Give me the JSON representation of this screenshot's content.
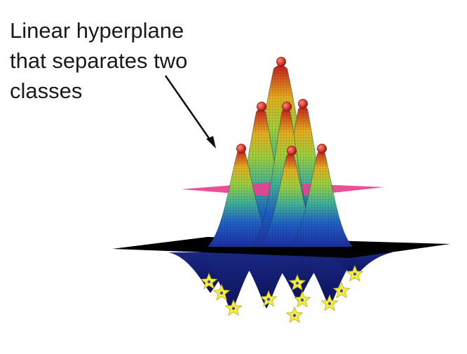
{
  "annotation": {
    "text": "Linear hyperplane\nthat separates two\nclasses"
  },
  "colors": {
    "background": "#ffffff",
    "text": "#1a1a1a",
    "hyperplane": "#e8418f",
    "base_plane": "#000000",
    "positive_marker": "#dc3b2e",
    "negative_marker": "#f6ee3a",
    "surface_high": "#cc1d1d",
    "surface_mid": "#3fb59a",
    "surface_low": "#1d2fa8"
  },
  "icons": {
    "positive_class": "red-sphere",
    "negative_class": "yellow-star"
  }
}
